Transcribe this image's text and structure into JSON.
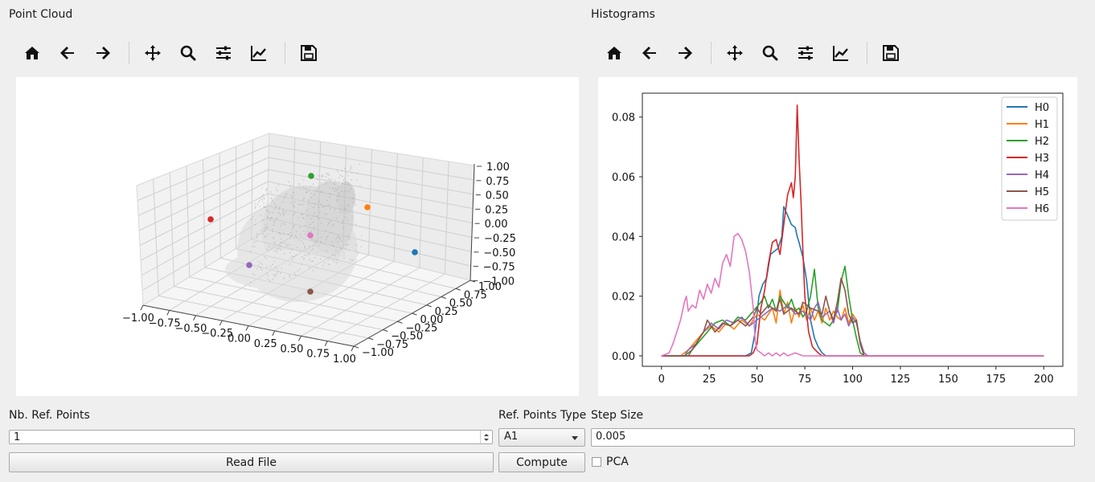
{
  "left_panel": {
    "title": "Point Cloud"
  },
  "right_panel": {
    "title": "Histograms"
  },
  "toolbar": {
    "icons": [
      "home-icon",
      "back-arrow-icon",
      "forward-arrow-icon",
      "pan-move-icon",
      "zoom-magnifier-icon",
      "configure-subplots-icon",
      "edit-axis-icon",
      "save-floppy-icon"
    ]
  },
  "scatter3d": {
    "z_ticks": [
      "1.00",
      "0.75",
      "0.50",
      "0.25",
      "0.00",
      "−0.25",
      "−0.50",
      "−0.75",
      "−1.00"
    ],
    "x_ticks": [
      "−1.00",
      "−0.75",
      "−0.50",
      "−0.25",
      "0.00",
      "0.25",
      "0.50",
      "0.75",
      "1.00"
    ],
    "y_ticks": [
      "1.00",
      "0.75",
      "0.50",
      "0.25",
      "0.00",
      "−0.25",
      "−0.50",
      "−0.75",
      "−1.00"
    ],
    "ref_point_colors": [
      "#1f77b4",
      "#ff7f0e",
      "#2ca02c",
      "#d62728",
      "#9467bd",
      "#8c564b",
      "#e377c2"
    ]
  },
  "chart_data": {
    "type": "line",
    "xlim": [
      0,
      200
    ],
    "ylim": [
      0,
      0.088
    ],
    "x_ticks": [
      "0",
      "25",
      "50",
      "75",
      "100",
      "125",
      "150",
      "175",
      "200"
    ],
    "y_ticks": [
      "0.00",
      "0.02",
      "0.04",
      "0.06",
      "0.08"
    ],
    "legend_position": "top-right",
    "series": [
      {
        "name": "H0",
        "color": "#1f77b4",
        "points": [
          [
            0,
            0
          ],
          [
            44,
            0
          ],
          [
            47,
            0.001
          ],
          [
            49,
            0.008
          ],
          [
            51,
            0.02
          ],
          [
            53,
            0.024
          ],
          [
            55,
            0.026
          ],
          [
            57,
            0.034
          ],
          [
            59,
            0.035
          ],
          [
            61,
            0.036
          ],
          [
            63,
            0.04
          ],
          [
            64,
            0.05
          ],
          [
            66,
            0.047
          ],
          [
            68,
            0.044
          ],
          [
            70,
            0.043
          ],
          [
            71,
            0.04
          ],
          [
            72,
            0.038
          ],
          [
            74,
            0.033
          ],
          [
            76,
            0.025
          ],
          [
            78,
            0.012
          ],
          [
            80,
            0.006
          ],
          [
            82,
            0.003
          ],
          [
            84,
            0.001
          ],
          [
            86,
            0
          ],
          [
            200,
            0
          ]
        ]
      },
      {
        "name": "H1",
        "color": "#ff7f0e",
        "points": [
          [
            0,
            0
          ],
          [
            10,
            0
          ],
          [
            14,
            0.002
          ],
          [
            18,
            0.005
          ],
          [
            22,
            0.008
          ],
          [
            26,
            0.01
          ],
          [
            30,
            0.008
          ],
          [
            34,
            0.011
          ],
          [
            38,
            0.009
          ],
          [
            42,
            0.012
          ],
          [
            46,
            0.01
          ],
          [
            50,
            0.014
          ],
          [
            54,
            0.012
          ],
          [
            58,
            0.016
          ],
          [
            60,
            0.011
          ],
          [
            62,
            0.022
          ],
          [
            64,
            0.014
          ],
          [
            66,
            0.018
          ],
          [
            68,
            0.011
          ],
          [
            70,
            0.016
          ],
          [
            72,
            0.013
          ],
          [
            74,
            0.017
          ],
          [
            76,
            0.012
          ],
          [
            78,
            0.016
          ],
          [
            80,
            0.012
          ],
          [
            82,
            0.015
          ],
          [
            84,
            0.011
          ],
          [
            86,
            0.016
          ],
          [
            88,
            0.012
          ],
          [
            90,
            0.015
          ],
          [
            92,
            0.013
          ],
          [
            94,
            0.012
          ],
          [
            96,
            0.016
          ],
          [
            98,
            0.011
          ],
          [
            100,
            0.014
          ],
          [
            102,
            0.012
          ],
          [
            104,
            0.004
          ],
          [
            106,
            0
          ],
          [
            200,
            0
          ]
        ]
      },
      {
        "name": "H2",
        "color": "#2ca02c",
        "points": [
          [
            0,
            0
          ],
          [
            12,
            0
          ],
          [
            16,
            0.002
          ],
          [
            20,
            0.005
          ],
          [
            24,
            0.008
          ],
          [
            28,
            0.011
          ],
          [
            32,
            0.012
          ],
          [
            36,
            0.01
          ],
          [
            40,
            0.013
          ],
          [
            44,
            0.012
          ],
          [
            48,
            0.015
          ],
          [
            52,
            0.018
          ],
          [
            54,
            0.02
          ],
          [
            56,
            0.016
          ],
          [
            58,
            0.019
          ],
          [
            60,
            0.015
          ],
          [
            62,
            0.02
          ],
          [
            64,
            0.018
          ],
          [
            66,
            0.016
          ],
          [
            68,
            0.019
          ],
          [
            70,
            0.015
          ],
          [
            72,
            0.016
          ],
          [
            74,
            0.013
          ],
          [
            76,
            0.015
          ],
          [
            78,
            0.02
          ],
          [
            80,
            0.029
          ],
          [
            82,
            0.016
          ],
          [
            84,
            0.012
          ],
          [
            86,
            0.011
          ],
          [
            88,
            0.01
          ],
          [
            90,
            0.012
          ],
          [
            92,
            0.015
          ],
          [
            94,
            0.025
          ],
          [
            96,
            0.03
          ],
          [
            98,
            0.02
          ],
          [
            100,
            0.012
          ],
          [
            102,
            0.006
          ],
          [
            104,
            0.001
          ],
          [
            106,
            0
          ],
          [
            200,
            0
          ]
        ]
      },
      {
        "name": "H3",
        "color": "#d62728",
        "points": [
          [
            0,
            0
          ],
          [
            46,
            0
          ],
          [
            48,
            0.001
          ],
          [
            50,
            0.004
          ],
          [
            52,
            0.016
          ],
          [
            54,
            0.022
          ],
          [
            56,
            0.031
          ],
          [
            58,
            0.038
          ],
          [
            60,
            0.039
          ],
          [
            62,
            0.034
          ],
          [
            64,
            0.044
          ],
          [
            66,
            0.054
          ],
          [
            68,
            0.058
          ],
          [
            69,
            0.053
          ],
          [
            70,
            0.06
          ],
          [
            71,
            0.084
          ],
          [
            72,
            0.066
          ],
          [
            73,
            0.052
          ],
          [
            74,
            0.035
          ],
          [
            75,
            0.02
          ],
          [
            77,
            0.008
          ],
          [
            79,
            0.003
          ],
          [
            82,
            0.001
          ],
          [
            84,
            0
          ],
          [
            200,
            0
          ]
        ]
      },
      {
        "name": "H4",
        "color": "#9467bd",
        "points": [
          [
            0,
            0
          ],
          [
            12,
            0
          ],
          [
            14,
            0.002
          ],
          [
            18,
            0.004
          ],
          [
            22,
            0.008
          ],
          [
            26,
            0.011
          ],
          [
            30,
            0.009
          ],
          [
            34,
            0.012
          ],
          [
            38,
            0.011
          ],
          [
            42,
            0.013
          ],
          [
            46,
            0.01
          ],
          [
            50,
            0.012
          ],
          [
            54,
            0.014
          ],
          [
            58,
            0.016
          ],
          [
            62,
            0.015
          ],
          [
            66,
            0.017
          ],
          [
            70,
            0.014
          ],
          [
            74,
            0.015
          ],
          [
            78,
            0.012
          ],
          [
            80,
            0.016
          ],
          [
            82,
            0.018
          ],
          [
            84,
            0.013
          ],
          [
            86,
            0.014
          ],
          [
            88,
            0.015
          ],
          [
            90,
            0.011
          ],
          [
            92,
            0.016
          ],
          [
            94,
            0.012
          ],
          [
            96,
            0.014
          ],
          [
            98,
            0.01
          ],
          [
            100,
            0.013
          ],
          [
            102,
            0.011
          ],
          [
            104,
            0.005
          ],
          [
            106,
            0.001
          ],
          [
            108,
            0
          ],
          [
            200,
            0
          ]
        ]
      },
      {
        "name": "H5",
        "color": "#8c564b",
        "points": [
          [
            0,
            0
          ],
          [
            14,
            0
          ],
          [
            16,
            0.002
          ],
          [
            18,
            0.004
          ],
          [
            22,
            0.008
          ],
          [
            24,
            0.012
          ],
          [
            28,
            0.008
          ],
          [
            32,
            0.011
          ],
          [
            36,
            0.01
          ],
          [
            40,
            0.012
          ],
          [
            44,
            0.01
          ],
          [
            48,
            0.013
          ],
          [
            50,
            0.016
          ],
          [
            52,
            0.014
          ],
          [
            56,
            0.017
          ],
          [
            60,
            0.015
          ],
          [
            62,
            0.019
          ],
          [
            64,
            0.014
          ],
          [
            68,
            0.016
          ],
          [
            72,
            0.014
          ],
          [
            74,
            0.018
          ],
          [
            78,
            0.016
          ],
          [
            82,
            0.015
          ],
          [
            84,
            0.014
          ],
          [
            86,
            0.02
          ],
          [
            88,
            0.015
          ],
          [
            90,
            0.012
          ],
          [
            92,
            0.018
          ],
          [
            94,
            0.026
          ],
          [
            96,
            0.022
          ],
          [
            98,
            0.014
          ],
          [
            100,
            0.011
          ],
          [
            102,
            0.012
          ],
          [
            104,
            0.004
          ],
          [
            106,
            0
          ],
          [
            200,
            0
          ]
        ]
      },
      {
        "name": "H6",
        "color": "#e377c2",
        "points": [
          [
            0,
            0
          ],
          [
            4,
            0.001
          ],
          [
            6,
            0.004
          ],
          [
            8,
            0.008
          ],
          [
            10,
            0.012
          ],
          [
            12,
            0.018
          ],
          [
            13,
            0.02
          ],
          [
            14,
            0.015
          ],
          [
            16,
            0.017
          ],
          [
            18,
            0.016
          ],
          [
            20,
            0.022
          ],
          [
            22,
            0.019
          ],
          [
            24,
            0.024
          ],
          [
            26,
            0.021
          ],
          [
            28,
            0.026
          ],
          [
            30,
            0.023
          ],
          [
            32,
            0.031
          ],
          [
            34,
            0.034
          ],
          [
            36,
            0.03
          ],
          [
            38,
            0.04
          ],
          [
            40,
            0.041
          ],
          [
            42,
            0.039
          ],
          [
            44,
            0.035
          ],
          [
            46,
            0.028
          ],
          [
            48,
            0.016
          ],
          [
            49,
            0.005
          ],
          [
            50,
            0.002
          ],
          [
            52,
            0.001
          ],
          [
            54,
            0
          ],
          [
            56,
            0.001
          ],
          [
            58,
            0
          ],
          [
            60,
            0.001
          ],
          [
            62,
            0
          ],
          [
            64,
            0.001
          ],
          [
            66,
            0
          ],
          [
            70,
            0.001
          ],
          [
            74,
            0
          ],
          [
            200,
            0
          ]
        ]
      }
    ]
  },
  "controls": {
    "nb_ref_points_label": "Nb. Ref. Points",
    "nb_ref_points_value": "1",
    "ref_points_type_label": "Ref. Points Type",
    "ref_points_type_value": "A1",
    "step_size_label": "Step Size",
    "step_size_value": "0.005",
    "read_file_label": "Read File",
    "compute_label": "Compute",
    "pca_label": "PCA",
    "pca_checked": false
  }
}
